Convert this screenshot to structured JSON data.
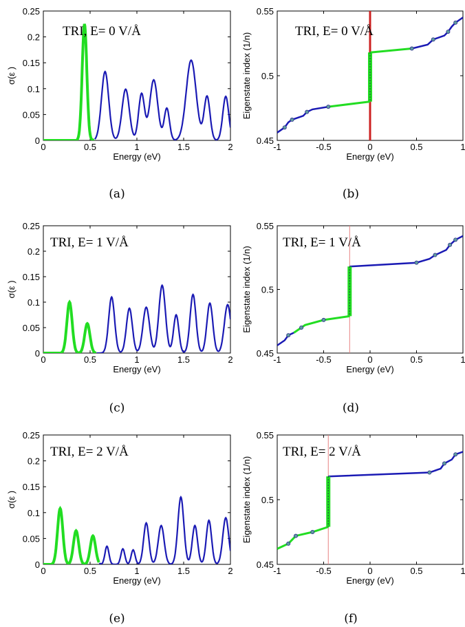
{
  "colors": {
    "green": "#22dd22",
    "blue": "#1a1ab4",
    "red": "#cc2222",
    "marker": "#5f9ea0",
    "zero_line": "#e88080"
  },
  "chart_data": [
    {
      "panel": "a",
      "type": "line",
      "caption": "(a)",
      "title": "TRI, E= 0 V/Å",
      "xlabel": "Energy (eV)",
      "ylabel": "σ(ε )",
      "xlim": [
        0,
        2
      ],
      "ylim": [
        0,
        0.25
      ],
      "xticks": [
        "0",
        "0.5",
        "1",
        "1.5",
        "2"
      ],
      "yticks": [
        "0",
        "0.05",
        "0.1",
        "0.15",
        "0.2",
        "0.25"
      ],
      "green_series": [
        [
          0.44,
          0.225,
          0.035
        ]
      ],
      "blue_series": [
        [
          0.66,
          0.133,
          0.055
        ],
        [
          0.88,
          0.099,
          0.055
        ],
        [
          1.05,
          0.09,
          0.045
        ],
        [
          1.18,
          0.117,
          0.06
        ],
        [
          1.32,
          0.062,
          0.04
        ],
        [
          1.58,
          0.155,
          0.075
        ],
        [
          1.75,
          0.085,
          0.045
        ],
        [
          1.95,
          0.085,
          0.045
        ]
      ],
      "blue_start": 0.55
    },
    {
      "panel": "b",
      "type": "line",
      "caption": "(b)",
      "title": "TRI, E= 0 V/Å",
      "xlabel": "Energy (eV)",
      "ylabel": "Eigenstate index (1/n)",
      "xlim": [
        -1,
        1
      ],
      "ylim": [
        0.45,
        0.55
      ],
      "xticks": [
        "-1",
        "-0.5",
        "0",
        "0.5",
        "1"
      ],
      "yticks": [
        "0.45",
        "0.5",
        "0.55"
      ],
      "fermi": 0,
      "left_blue": [
        [
          -1,
          0.456
        ],
        [
          -0.92,
          0.46
        ],
        [
          -0.88,
          0.464
        ],
        [
          -0.84,
          0.466
        ],
        [
          -0.72,
          0.469
        ],
        [
          -0.68,
          0.472
        ],
        [
          -0.62,
          0.474
        ],
        [
          -0.45,
          0.476
        ]
      ],
      "left_green": [
        [
          -0.45,
          0.476
        ],
        [
          0,
          0.48
        ]
      ],
      "right_green": [
        [
          0,
          0.518
        ],
        [
          0.45,
          0.521
        ]
      ],
      "right_blue": [
        [
          0.45,
          0.521
        ],
        [
          0.62,
          0.524
        ],
        [
          0.68,
          0.528
        ],
        [
          0.8,
          0.531
        ],
        [
          0.84,
          0.534
        ],
        [
          0.88,
          0.538
        ],
        [
          0.92,
          0.541
        ],
        [
          1,
          0.545
        ]
      ],
      "markers": [
        [
          -0.92,
          0.46
        ],
        [
          -0.84,
          0.466
        ],
        [
          -0.68,
          0.472
        ],
        [
          -0.45,
          0.476
        ],
        [
          0.45,
          0.521
        ],
        [
          0.68,
          0.528
        ],
        [
          0.84,
          0.534
        ],
        [
          0.92,
          0.541
        ]
      ]
    },
    {
      "panel": "c",
      "type": "line",
      "caption": "(c)",
      "title": "TRI, E= 1 V/Å",
      "xlabel": "Energy (eV)",
      "ylabel": "σ(ε )",
      "xlim": [
        0,
        2
      ],
      "ylim": [
        0,
        0.25
      ],
      "xticks": [
        "0",
        "0.5",
        "1",
        "1.5",
        "2"
      ],
      "yticks": [
        "0",
        "0.05",
        "0.1",
        "0.15",
        "0.2",
        "0.25"
      ],
      "green_series": [
        [
          0.28,
          0.1,
          0.04
        ],
        [
          0.47,
          0.058,
          0.04
        ]
      ],
      "blue_series": [
        [
          0.73,
          0.11,
          0.045
        ],
        [
          0.92,
          0.088,
          0.045
        ],
        [
          1.1,
          0.09,
          0.05
        ],
        [
          1.27,
          0.133,
          0.05
        ],
        [
          1.42,
          0.075,
          0.04
        ],
        [
          1.6,
          0.115,
          0.045
        ],
        [
          1.78,
          0.098,
          0.045
        ],
        [
          1.97,
          0.095,
          0.05
        ]
      ],
      "blue_start": 0.57
    },
    {
      "panel": "d",
      "type": "line",
      "caption": "(d)",
      "title": "TRI, E= 1 V/Å",
      "xlabel": "Energy (eV)",
      "ylabel": "Eigenstate index (1/n)",
      "xlim": [
        -1,
        1
      ],
      "ylim": [
        0.45,
        0.55
      ],
      "xticks": [
        "-1",
        "-0.5",
        "0",
        "0.5",
        "1"
      ],
      "yticks": [
        "0.45",
        "0.5",
        "0.55"
      ],
      "fermi": -0.22,
      "left_blue": [
        [
          -1,
          0.456
        ],
        [
          -0.92,
          0.46
        ],
        [
          -0.88,
          0.464
        ],
        [
          -0.82,
          0.466
        ]
      ],
      "left_green": [
        [
          -0.82,
          0.466
        ],
        [
          -0.74,
          0.47
        ],
        [
          -0.7,
          0.472
        ],
        [
          -0.5,
          0.476
        ],
        [
          -0.22,
          0.479
        ]
      ],
      "right_green": [],
      "right_blue": [
        [
          -0.22,
          0.518
        ],
        [
          0.5,
          0.521
        ],
        [
          0.64,
          0.524
        ],
        [
          0.7,
          0.527
        ],
        [
          0.82,
          0.531
        ],
        [
          0.86,
          0.535
        ],
        [
          0.92,
          0.539
        ],
        [
          1,
          0.542
        ]
      ],
      "markers": [
        [
          -0.88,
          0.464
        ],
        [
          -0.74,
          0.47
        ],
        [
          -0.5,
          0.476
        ],
        [
          0.5,
          0.521
        ],
        [
          0.7,
          0.527
        ],
        [
          0.86,
          0.535
        ],
        [
          0.92,
          0.539
        ]
      ]
    },
    {
      "panel": "e",
      "type": "line",
      "caption": "(e)",
      "title": "TRI, E= 2 V/Å",
      "xlabel": "Energy (eV)",
      "ylabel": "σ(ε )",
      "xlim": [
        0,
        2
      ],
      "ylim": [
        0,
        0.25
      ],
      "xticks": [
        "0",
        "0.5",
        "1",
        "1.5",
        "2"
      ],
      "yticks": [
        "0",
        "0.05",
        "0.1",
        "0.15",
        "0.2",
        "0.25"
      ],
      "green_series": [
        [
          0.18,
          0.108,
          0.04
        ],
        [
          0.35,
          0.065,
          0.04
        ],
        [
          0.53,
          0.055,
          0.04
        ]
      ],
      "blue_series": [
        [
          0.68,
          0.035,
          0.03
        ],
        [
          0.85,
          0.03,
          0.03
        ],
        [
          0.96,
          0.028,
          0.03
        ],
        [
          1.1,
          0.08,
          0.04
        ],
        [
          1.26,
          0.075,
          0.045
        ],
        [
          1.47,
          0.13,
          0.045
        ],
        [
          1.62,
          0.075,
          0.04
        ],
        [
          1.77,
          0.085,
          0.04
        ],
        [
          1.95,
          0.09,
          0.045
        ]
      ],
      "blue_start": 0.6
    },
    {
      "panel": "f",
      "type": "line",
      "caption": "(f)",
      "title": "TRI, E= 2 V/Å",
      "xlabel": "Energy (eV)",
      "ylabel": "Eigenstate index (1/n)",
      "xlim": [
        -1,
        1
      ],
      "ylim": [
        0.45,
        0.55
      ],
      "xticks": [
        "-1",
        "-0.5",
        "0",
        "0.5",
        "1"
      ],
      "yticks": [
        "0.45",
        "0.5",
        "0.55"
      ],
      "fermi": -0.45,
      "left_blue": [],
      "left_green": [
        [
          -1,
          0.462
        ],
        [
          -0.88,
          0.466
        ],
        [
          -0.84,
          0.469
        ],
        [
          -0.8,
          0.472
        ],
        [
          -0.62,
          0.475
        ],
        [
          -0.45,
          0.479
        ]
      ],
      "right_green": [],
      "right_blue": [
        [
          -0.45,
          0.518
        ],
        [
          0.64,
          0.521
        ],
        [
          0.76,
          0.524
        ],
        [
          0.8,
          0.528
        ],
        [
          0.88,
          0.531
        ],
        [
          0.92,
          0.535
        ],
        [
          1,
          0.537
        ]
      ],
      "markers": [
        [
          -0.88,
          0.466
        ],
        [
          -0.8,
          0.472
        ],
        [
          -0.62,
          0.475
        ],
        [
          0.64,
          0.521
        ],
        [
          0.8,
          0.528
        ],
        [
          0.92,
          0.535
        ]
      ]
    }
  ]
}
